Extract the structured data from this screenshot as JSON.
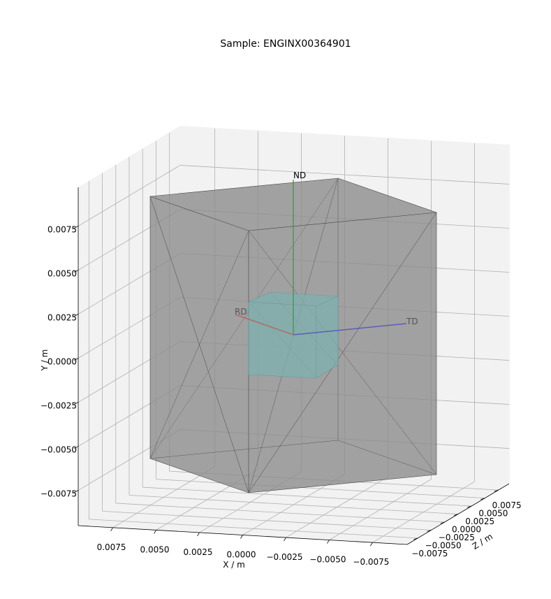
{
  "chart_data": {
    "type": "3d",
    "title": "Sample: ENGINX00364901",
    "xlabel": "X / m",
    "ylabel": "Y / m",
    "zlabel": "Z / m",
    "xlim": [
      -0.0095,
      0.0095
    ],
    "ylim": [
      -0.0095,
      0.0097
    ],
    "zlim": [
      -0.0095,
      0.0095
    ],
    "xticks": [
      0.0075,
      {
        "value": 0.005,
        "label": "0.0050"
      },
      0.0025,
      {
        "value": 0,
        "label": "0.0000"
      },
      {
        "value": -0.0025,
        "label": "−0.0025"
      },
      {
        "value": -0.005,
        "label": "−0.0050"
      },
      {
        "value": -0.0075,
        "label": "−0.0075"
      }
    ],
    "yticks": [
      {
        "value": -0.0075,
        "label": "−0.0075"
      },
      {
        "value": -0.005,
        "label": "−0.0050"
      },
      {
        "value": -0.0025,
        "label": "−0.0025"
      },
      {
        "value": 0,
        "label": "0.0000"
      },
      0.0025,
      {
        "value": 0.005,
        "label": "0.0050"
      },
      0.0075
    ],
    "zticks": [
      {
        "value": -0.0075,
        "label": "−0.0075"
      },
      {
        "value": -0.005,
        "label": "−0.0050"
      },
      {
        "value": -0.0025,
        "label": "−0.0025"
      },
      {
        "value": 0,
        "label": "0.0000"
      },
      0.0025,
      {
        "value": 0.005,
        "label": "0.0050"
      },
      0.0075
    ],
    "grid": true,
    "annotations": [
      "RD",
      "ND",
      "TD"
    ]
  }
}
